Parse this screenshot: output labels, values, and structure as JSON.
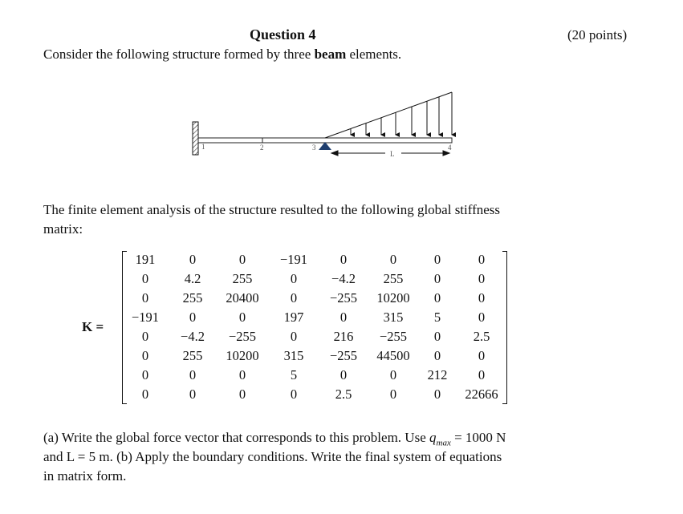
{
  "header": {
    "title": "Question 4",
    "points": "(20 points)"
  },
  "intro": {
    "before": "Consider the following structure formed by three ",
    "bold": "beam",
    "after": " elements."
  },
  "diagram": {
    "node_labels": [
      "1",
      "2",
      "3",
      "4"
    ],
    "length_label": "L"
  },
  "para1": [
    "The finite element analysis of the structure resulted to the following global stiffness",
    "matrix:"
  ],
  "matrix": {
    "label": "K =",
    "rows": [
      [
        "191",
        "0",
        "0",
        "−191",
        "0",
        "0",
        "0",
        "0"
      ],
      [
        "0",
        "4.2",
        "255",
        "0",
        "−4.2",
        "255",
        "0",
        "0"
      ],
      [
        "0",
        "255",
        "20400",
        "0",
        "−255",
        "10200",
        "0",
        "0"
      ],
      [
        "−191",
        "0",
        "0",
        "197",
        "0",
        "315",
        "5",
        "0"
      ],
      [
        "0",
        "−4.2",
        "−255",
        "0",
        "216",
        "−255",
        "0",
        "2.5"
      ],
      [
        "0",
        "255",
        "10200",
        "315",
        "−255",
        "44500",
        "0",
        "0"
      ],
      [
        "0",
        "0",
        "0",
        "5",
        "0",
        "0",
        "212",
        "0"
      ],
      [
        "0",
        "0",
        "0",
        "0",
        "2.5",
        "0",
        "0",
        "22666"
      ]
    ]
  },
  "question": {
    "line1a": "(a) Write the global force vector that corresponds to this problem. Use ",
    "qvar": "q",
    "qsub": "max",
    "line1b": " = 1000 N",
    "line2": "and L = 5 m. (b) Apply the boundary conditions. Write the final system of equations",
    "line3": "in matrix form."
  }
}
